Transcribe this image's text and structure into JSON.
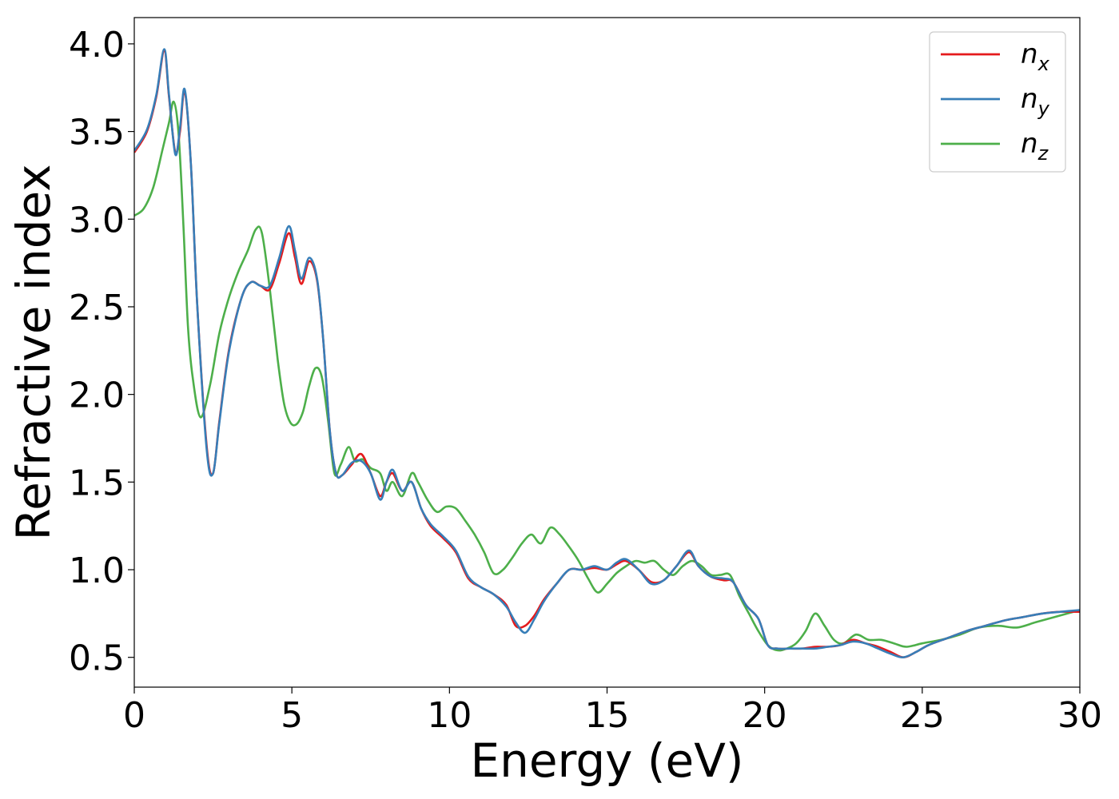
{
  "chart_data": {
    "type": "line",
    "title": "",
    "xlabel": "Energy (eV)",
    "ylabel": "Refractive index",
    "xlim": [
      0,
      30
    ],
    "ylim": [
      0.33,
      4.15
    ],
    "xticks": [
      "0",
      "5",
      "10",
      "15",
      "20",
      "25",
      "30"
    ],
    "yticks": [
      "0.5",
      "1.0",
      "1.5",
      "2.0",
      "2.5",
      "3.0",
      "3.5",
      "4.0"
    ],
    "grid": false,
    "legend_position": "top-right",
    "series": [
      {
        "name": "n",
        "subscript": "x",
        "color": "#e41a1c",
        "x": [
          0,
          0.4,
          0.7,
          0.95,
          1.1,
          1.3,
          1.45,
          1.6,
          1.8,
          2.0,
          2.3,
          2.5,
          2.7,
          3.0,
          3.4,
          3.7,
          4.0,
          4.3,
          4.6,
          4.9,
          5.1,
          5.3,
          5.55,
          5.8,
          6.0,
          6.2,
          6.4,
          6.6,
          6.9,
          7.2,
          7.5,
          7.8,
          8.0,
          8.2,
          8.5,
          8.8,
          9.1,
          9.4,
          9.8,
          10.2,
          10.6,
          11.0,
          11.4,
          11.8,
          12.1,
          12.4,
          12.7,
          13.0,
          13.4,
          13.8,
          14.2,
          14.6,
          15.0,
          15.3,
          15.6,
          16.0,
          16.4,
          16.8,
          17.2,
          17.6,
          17.9,
          18.3,
          18.7,
          19.0,
          19.4,
          19.8,
          20.1,
          20.4,
          20.8,
          21.2,
          21.6,
          22.0,
          22.4,
          22.8,
          23.2,
          23.6,
          24.0,
          24.4,
          24.8,
          25.2,
          25.8,
          26.4,
          27.0,
          27.6,
          28.2,
          28.8,
          29.4,
          30.0
        ],
        "y": [
          3.38,
          3.5,
          3.7,
          3.96,
          3.7,
          3.38,
          3.5,
          3.73,
          3.3,
          2.5,
          1.7,
          1.55,
          1.85,
          2.25,
          2.55,
          2.64,
          2.62,
          2.6,
          2.75,
          2.92,
          2.78,
          2.63,
          2.76,
          2.65,
          2.3,
          1.8,
          1.55,
          1.54,
          1.6,
          1.66,
          1.55,
          1.42,
          1.5,
          1.55,
          1.45,
          1.5,
          1.35,
          1.25,
          1.18,
          1.1,
          0.95,
          0.9,
          0.86,
          0.8,
          0.68,
          0.68,
          0.74,
          0.83,
          0.92,
          1.0,
          1.0,
          1.01,
          1.0,
          1.03,
          1.05,
          1.0,
          0.93,
          0.94,
          1.02,
          1.1,
          1.02,
          0.96,
          0.94,
          0.93,
          0.8,
          0.72,
          0.57,
          0.55,
          0.55,
          0.55,
          0.56,
          0.56,
          0.57,
          0.6,
          0.58,
          0.56,
          0.53,
          0.5,
          0.53,
          0.57,
          0.61,
          0.65,
          0.68,
          0.71,
          0.73,
          0.75,
          0.76,
          0.76
        ]
      },
      {
        "name": "n",
        "subscript": "y",
        "color": "#377eb8",
        "x": [
          0,
          0.4,
          0.7,
          0.95,
          1.1,
          1.3,
          1.45,
          1.6,
          1.8,
          2.0,
          2.3,
          2.5,
          2.7,
          3.0,
          3.4,
          3.7,
          4.0,
          4.3,
          4.6,
          4.9,
          5.1,
          5.3,
          5.55,
          5.8,
          6.0,
          6.2,
          6.4,
          6.6,
          6.9,
          7.2,
          7.5,
          7.8,
          8.0,
          8.2,
          8.5,
          8.8,
          9.1,
          9.4,
          9.8,
          10.2,
          10.6,
          11.0,
          11.4,
          11.8,
          12.1,
          12.4,
          12.7,
          13.0,
          13.4,
          13.8,
          14.2,
          14.6,
          15.0,
          15.3,
          15.6,
          16.0,
          16.4,
          16.8,
          17.2,
          17.6,
          17.9,
          18.3,
          18.7,
          19.0,
          19.4,
          19.8,
          20.1,
          20.4,
          20.8,
          21.2,
          21.6,
          22.0,
          22.4,
          22.8,
          23.2,
          23.6,
          24.0,
          24.4,
          24.8,
          25.2,
          25.8,
          26.4,
          27.0,
          27.6,
          28.2,
          28.8,
          29.4,
          30.0
        ],
        "y": [
          3.39,
          3.51,
          3.71,
          3.97,
          3.71,
          3.37,
          3.52,
          3.74,
          3.3,
          2.5,
          1.68,
          1.55,
          1.84,
          2.24,
          2.55,
          2.64,
          2.62,
          2.62,
          2.78,
          2.96,
          2.82,
          2.66,
          2.78,
          2.66,
          2.3,
          1.8,
          1.55,
          1.54,
          1.61,
          1.62,
          1.55,
          1.4,
          1.5,
          1.57,
          1.45,
          1.5,
          1.35,
          1.26,
          1.19,
          1.11,
          0.96,
          0.9,
          0.86,
          0.79,
          0.7,
          0.64,
          0.72,
          0.82,
          0.92,
          1.0,
          1.0,
          1.02,
          1.0,
          1.04,
          1.06,
          1.0,
          0.92,
          0.94,
          1.02,
          1.11,
          1.02,
          0.96,
          0.95,
          0.93,
          0.8,
          0.72,
          0.57,
          0.55,
          0.55,
          0.55,
          0.55,
          0.56,
          0.57,
          0.59,
          0.58,
          0.55,
          0.52,
          0.5,
          0.53,
          0.57,
          0.61,
          0.65,
          0.68,
          0.71,
          0.73,
          0.75,
          0.76,
          0.77
        ]
      },
      {
        "name": "n",
        "subscript": "z",
        "color": "#4daf4a",
        "x": [
          0,
          0.3,
          0.6,
          0.9,
          1.1,
          1.25,
          1.4,
          1.55,
          1.7,
          1.85,
          2.1,
          2.4,
          2.7,
          3.0,
          3.3,
          3.6,
          3.85,
          4.05,
          4.3,
          4.55,
          4.75,
          4.95,
          5.15,
          5.35,
          5.55,
          5.75,
          5.95,
          6.15,
          6.35,
          6.55,
          6.8,
          7.0,
          7.25,
          7.5,
          7.8,
          8.0,
          8.2,
          8.5,
          8.8,
          9.0,
          9.3,
          9.6,
          9.9,
          10.2,
          10.5,
          10.8,
          11.1,
          11.4,
          11.7,
          12.0,
          12.3,
          12.6,
          12.9,
          13.2,
          13.5,
          13.8,
          14.1,
          14.4,
          14.7,
          15.0,
          15.3,
          15.6,
          15.9,
          16.2,
          16.5,
          16.8,
          17.1,
          17.4,
          17.7,
          18.0,
          18.3,
          18.6,
          18.9,
          19.2,
          19.5,
          19.8,
          20.1,
          20.4,
          20.7,
          21.0,
          21.3,
          21.6,
          21.9,
          22.2,
          22.5,
          22.9,
          23.3,
          23.7,
          24.1,
          24.5,
          25.0,
          25.6,
          26.2,
          26.8,
          27.4,
          28.0,
          28.6,
          29.2,
          30.0
        ],
        "y": [
          3.02,
          3.06,
          3.18,
          3.4,
          3.55,
          3.67,
          3.5,
          3.0,
          2.4,
          2.1,
          1.87,
          2.05,
          2.35,
          2.55,
          2.7,
          2.82,
          2.94,
          2.92,
          2.6,
          2.2,
          1.95,
          1.84,
          1.83,
          1.9,
          2.05,
          2.15,
          2.1,
          1.85,
          1.55,
          1.6,
          1.7,
          1.62,
          1.63,
          1.58,
          1.55,
          1.45,
          1.5,
          1.42,
          1.55,
          1.5,
          1.4,
          1.33,
          1.36,
          1.35,
          1.28,
          1.2,
          1.1,
          0.98,
          1.0,
          1.07,
          1.15,
          1.2,
          1.15,
          1.24,
          1.2,
          1.13,
          1.05,
          0.95,
          0.87,
          0.92,
          0.98,
          1.02,
          1.05,
          1.04,
          1.05,
          1.0,
          0.97,
          1.02,
          1.05,
          1.02,
          0.97,
          0.97,
          0.97,
          0.85,
          0.75,
          0.65,
          0.57,
          0.54,
          0.55,
          0.58,
          0.65,
          0.75,
          0.68,
          0.6,
          0.58,
          0.63,
          0.6,
          0.6,
          0.58,
          0.56,
          0.58,
          0.6,
          0.63,
          0.67,
          0.68,
          0.67,
          0.7,
          0.73,
          0.77
        ]
      }
    ]
  }
}
